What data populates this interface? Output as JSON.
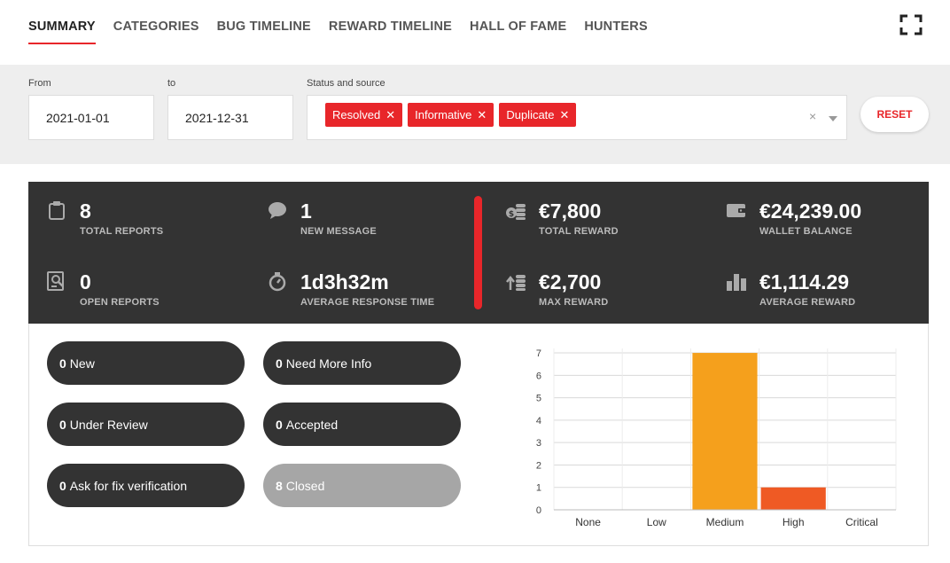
{
  "nav": {
    "tabs": [
      {
        "label": "SUMMARY",
        "active": true
      },
      {
        "label": "CATEGORIES"
      },
      {
        "label": "BUG TIMELINE"
      },
      {
        "label": "REWARD TIMELINE"
      },
      {
        "label": "HALL OF FAME"
      },
      {
        "label": "HUNTERS"
      }
    ],
    "fullscreen_icon": "fullscreen-icon"
  },
  "filters": {
    "from_label": "From",
    "from_value": "2021-01-01",
    "to_label": "to",
    "to_value": "2021-12-31",
    "status_label": "Status and source",
    "chips": [
      "Resolved",
      "Informative",
      "Duplicate"
    ],
    "chip_remove": "✕",
    "clear": "×",
    "reset_label": "RESET"
  },
  "stats": {
    "total_reports": {
      "value": "8",
      "label": "TOTAL REPORTS"
    },
    "new_message": {
      "value": "1",
      "label": "NEW MESSAGE"
    },
    "open_reports": {
      "value": "0",
      "label": "OPEN REPORTS"
    },
    "avg_response": {
      "value": "1d3h32m",
      "label": "AVERAGE RESPONSE TIME"
    },
    "total_reward": {
      "value": "€7,800",
      "label": "TOTAL REWARD"
    },
    "wallet_balance": {
      "value": "€24,239.00",
      "label": "WALLET BALANCE"
    },
    "max_reward": {
      "value": "€2,700",
      "label": "MAX REWARD"
    },
    "average_reward": {
      "value": "€1,114.29",
      "label": "AVERAGE REWARD"
    }
  },
  "statuses": [
    {
      "count": "0",
      "label": "New"
    },
    {
      "count": "0",
      "label": "Need More Info"
    },
    {
      "count": "0",
      "label": "Under Review"
    },
    {
      "count": "0",
      "label": "Accepted"
    },
    {
      "count": "0",
      "label": "Ask for fix verification"
    },
    {
      "count": "8",
      "label": "Closed"
    }
  ],
  "colors": {
    "accent": "#e8262a",
    "panel": "#333333",
    "bar_medium": "#f5a01c",
    "bar_high": "#ef5a24"
  },
  "chart_data": {
    "type": "bar",
    "categories": [
      "None",
      "Low",
      "Medium",
      "High",
      "Critical"
    ],
    "values": [
      0,
      0,
      7,
      1,
      0
    ],
    "bar_colors": [
      "#f5a01c",
      "#f5a01c",
      "#f5a01c",
      "#ef5a24",
      "#f5a01c"
    ],
    "yticks": [
      0,
      1,
      2,
      3,
      4,
      5,
      6,
      7
    ],
    "ylim": [
      0,
      7.2
    ],
    "grid": true,
    "title": "",
    "xlabel": "",
    "ylabel": ""
  }
}
